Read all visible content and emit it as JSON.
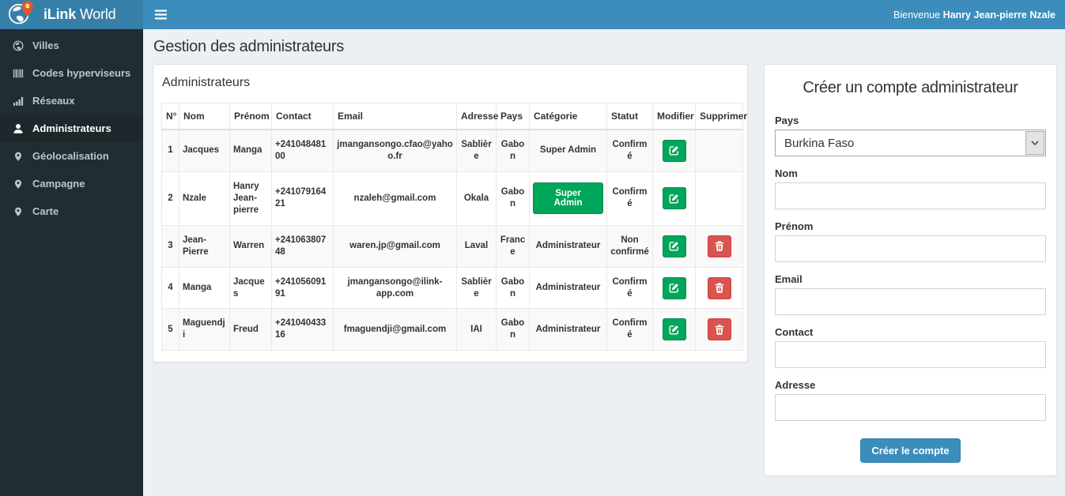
{
  "brand": {
    "name_bold": "iLink",
    "name_rest": " World",
    "logo_icon": "globe-pin-logo"
  },
  "topbar": {
    "menu_icon": "menu-icon",
    "welcome_prefix": "Bienvenue",
    "welcome_name": "Hanry Jean-pierre Nzale"
  },
  "sidebar": {
    "items": [
      {
        "label": "Villes",
        "icon": "globe-icon",
        "active": false
      },
      {
        "label": "Codes hyperviseurs",
        "icon": "barcode-icon",
        "active": false
      },
      {
        "label": "Réseaux",
        "icon": "signal-icon",
        "active": false
      },
      {
        "label": "Administrateurs",
        "icon": "user-icon",
        "active": true
      },
      {
        "label": "Géolocalisation",
        "icon": "map-marker-icon",
        "active": false
      },
      {
        "label": "Campagne",
        "icon": "map-marker-icon",
        "active": false
      },
      {
        "label": "Carte",
        "icon": "map-marker-icon",
        "active": false
      }
    ]
  },
  "page": {
    "title": "Gestion des administrateurs"
  },
  "admin_panel": {
    "title": "Administrateurs",
    "table": {
      "headers": [
        "N°",
        "Nom",
        "Prénom",
        "Contact",
        "Email",
        "Adresse",
        "Pays",
        "Catégorie",
        "Statut",
        "Modifier",
        "Supprimer"
      ],
      "edit_icon": "edit-icon",
      "delete_icon": "trash-icon",
      "rows": [
        {
          "numero": "1",
          "nom": "Jacques",
          "prenom": "Manga",
          "contact": "+24104848100",
          "email": "jmangansongo.cfao@yahoo.fr",
          "adresse": "Sablière",
          "pays": "Gabon",
          "categorie": "Super Admin",
          "categorie_style": "text",
          "statut": "Confirmé",
          "modifier": true,
          "supprimer": false
        },
        {
          "numero": "2",
          "nom": "Nzale",
          "prenom": "Hanry Jean-pierre",
          "contact": "+24107916421",
          "email": "nzaleh@gmail.com",
          "adresse": "Okala",
          "pays": "Gabon",
          "categorie": "Super Admin",
          "categorie_style": "button",
          "statut": "Confirmé",
          "modifier": true,
          "supprimer": false
        },
        {
          "numero": "3",
          "nom": "Jean-Pierre",
          "prenom": "Warren",
          "contact": "+24106380748",
          "email": "waren.jp@gmail.com",
          "adresse": "Laval",
          "pays": "France",
          "categorie": "Administrateur",
          "categorie_style": "text",
          "statut": "Non confirmé",
          "modifier": true,
          "supprimer": true
        },
        {
          "numero": "4",
          "nom": "Manga",
          "prenom": "Jacques",
          "contact": "+24105609191",
          "email": "jmangansongo@ilink-app.com",
          "adresse": "Sablière",
          "pays": "Gabon",
          "categorie": "Administrateur",
          "categorie_style": "text",
          "statut": "Confirmé",
          "modifier": true,
          "supprimer": true
        },
        {
          "numero": "5",
          "nom": "Maguendji",
          "prenom": "Freud",
          "contact": "+24104043316",
          "email": "fmaguendji@gmail.com",
          "adresse": "IAI",
          "pays": "Gabon",
          "categorie": "Administrateur",
          "categorie_style": "text",
          "statut": "Confirmé",
          "modifier": true,
          "supprimer": true
        }
      ]
    }
  },
  "form_panel": {
    "title": "Créer un compte administrateur",
    "fields": [
      {
        "label": "Pays",
        "name": "pays",
        "type": "select",
        "value": "Burkina Faso",
        "icon": "chevron-down-icon"
      },
      {
        "label": "Nom",
        "name": "nom",
        "type": "text",
        "value": "",
        "placeholder": ""
      },
      {
        "label": "Prénom",
        "name": "prenom",
        "type": "text",
        "value": "",
        "placeholder": ""
      },
      {
        "label": "Email",
        "name": "email",
        "type": "text",
        "value": "",
        "placeholder": ""
      },
      {
        "label": "Contact",
        "name": "contact",
        "type": "text",
        "value": "",
        "placeholder": ""
      },
      {
        "label": "Adresse",
        "name": "adresse",
        "type": "text",
        "value": "",
        "placeholder": ""
      }
    ],
    "submit_label": "Créer le compte"
  },
  "colors": {
    "navbar": "#3c8dbc",
    "brand_bg": "#367fa9",
    "sidebar_bg": "#222d32",
    "sidebar_active_bg": "#1e282c",
    "content_bg": "#ecf0f5",
    "success_green": "#00a65a",
    "danger_red": "#d9534f",
    "primary_blue": "#3c8dbc"
  }
}
